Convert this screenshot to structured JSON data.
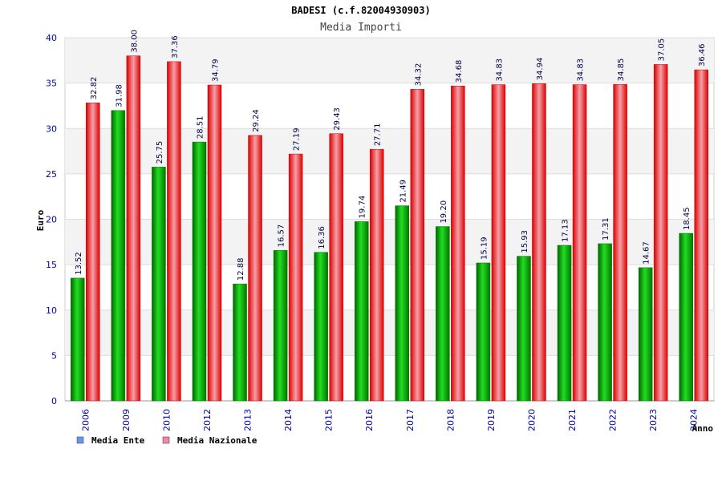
{
  "chart_data": {
    "type": "bar",
    "title": "BADESI (c.f.82004930903)",
    "subtitle": "Media Importi",
    "xlabel": "Anno",
    "ylabel": "Euro",
    "ylim": [
      0,
      40
    ],
    "yticks": [
      "0",
      "5",
      "10",
      "15",
      "20",
      "25",
      "30",
      "35",
      "40"
    ],
    "grid": true,
    "legend_position": "bottom-left",
    "categories": [
      "2006",
      "2009",
      "2010",
      "2012",
      "2013",
      "2014",
      "2015",
      "2016",
      "2017",
      "2018",
      "2019",
      "2020",
      "2021",
      "2022",
      "2023",
      "2024"
    ],
    "series": [
      {
        "name": "Media Ente",
        "color": "#00aa00",
        "legend_color": "#6699ee",
        "values": [
          13.52,
          31.98,
          25.75,
          28.51,
          12.88,
          16.57,
          16.36,
          19.74,
          21.49,
          19.2,
          15.19,
          15.93,
          17.13,
          17.31,
          14.67,
          18.45
        ],
        "labels": [
          "13.52",
          "31.98",
          "25.75",
          "28.51",
          "12.88",
          "16.57",
          "16.36",
          "19.74",
          "21.49",
          "19.20",
          "15.19",
          "15.93",
          "17.13",
          "17.31",
          "14.67",
          "18.45"
        ]
      },
      {
        "name": "Media Nazionale",
        "color": "#ee1111",
        "legend_color": "#ee88aa",
        "values": [
          32.82,
          38.0,
          37.36,
          34.79,
          29.24,
          27.19,
          29.43,
          27.71,
          34.32,
          34.68,
          34.83,
          34.94,
          34.83,
          34.85,
          37.05,
          36.46
        ],
        "labels": [
          "32.82",
          "38.00",
          "37.36",
          "34.79",
          "29.24",
          "27.19",
          "29.43",
          "27.71",
          "34.32",
          "34.68",
          "34.83",
          "34.94",
          "34.83",
          "34.85",
          "37.05",
          "36.46"
        ]
      }
    ]
  }
}
